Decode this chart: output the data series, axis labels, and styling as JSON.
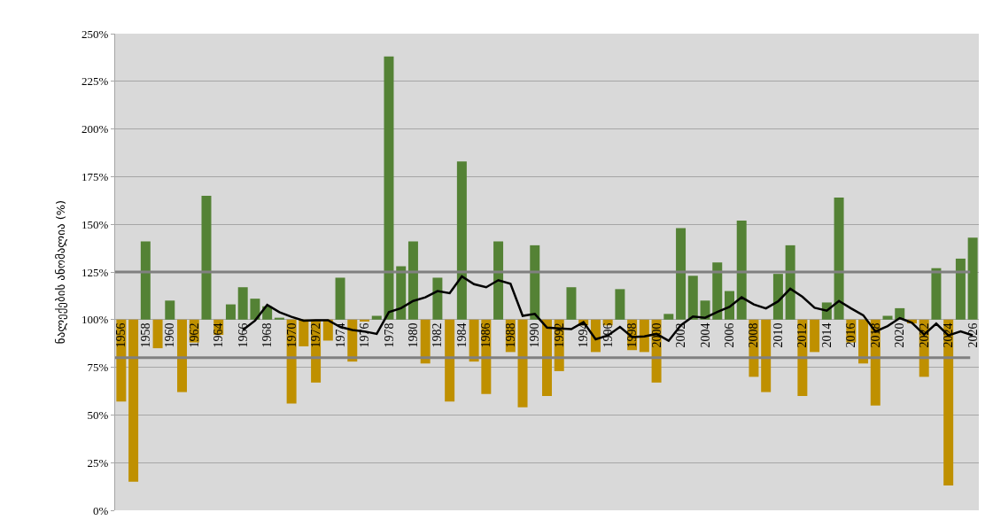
{
  "chart_data": {
    "type": "bar",
    "ylabel": "ნალექების ანომალია (%)",
    "categories": [
      "1956",
      null,
      "1958",
      null,
      "1960",
      null,
      "1962",
      null,
      "1964",
      null,
      "1966",
      null,
      "1968",
      null,
      "1970",
      null,
      "1972",
      null,
      "1974",
      null,
      "1976",
      null,
      "1978",
      null,
      "1980",
      null,
      "1982",
      null,
      "1984",
      null,
      "1986",
      null,
      "1988",
      null,
      "1990",
      null,
      "1992",
      null,
      "1994",
      null,
      "1996",
      null,
      "1998",
      null,
      "2000",
      null,
      "2002",
      null,
      "2004",
      null,
      "2006",
      null,
      "2008",
      null,
      "2010",
      null,
      "2012",
      null,
      "2014",
      null,
      "2016",
      null,
      "2018",
      null,
      "2020",
      null,
      "2022",
      null,
      "2024",
      null,
      "2026"
    ],
    "series": [
      {
        "base": [
          100,
          100,
          100,
          100,
          100,
          100,
          100,
          100,
          100,
          100,
          100,
          100,
          100,
          100,
          100,
          100,
          100,
          100,
          100,
          100,
          100,
          100,
          100,
          100,
          100,
          100,
          100,
          100,
          100,
          100,
          100,
          100,
          100,
          100,
          100,
          100,
          100,
          100,
          100,
          100,
          100,
          100,
          100,
          100,
          100,
          100,
          100,
          100,
          100,
          100,
          100,
          100,
          100,
          100,
          100,
          100,
          100,
          100,
          100,
          100,
          100,
          100,
          100,
          100,
          100,
          100,
          100,
          100,
          100,
          100,
          100
        ],
        "values": [
          -43,
          -85,
          41,
          -15,
          10,
          -38,
          -12,
          65,
          -8,
          8,
          17,
          11,
          7,
          1,
          -44,
          -14,
          -33,
          -11,
          22,
          -22,
          -1,
          2,
          138,
          28,
          41,
          -23,
          22,
          -43,
          83,
          -22,
          -39,
          41,
          -17,
          -46,
          39,
          -40,
          -27,
          17,
          -3,
          -17,
          -3,
          16,
          -16,
          -17,
          -33,
          3,
          48,
          23,
          10,
          30,
          15,
          52,
          -30,
          -38,
          24,
          39,
          -40,
          -17,
          9,
          64,
          -12,
          -23,
          -45,
          2,
          6,
          -2,
          -30,
          27,
          -87,
          32,
          43
        ],
        "colors": [
          "#bf9000",
          "#bf9000",
          "#548235",
          "#bf9000",
          "#548235",
          "#bf9000",
          "#bf9000",
          "#548235",
          "#bf9000",
          "#548235",
          "#548235",
          "#548235",
          "#548235",
          "#548235",
          "#bf9000",
          "#bf9000",
          "#bf9000",
          "#bf9000",
          "#548235",
          "#bf9000",
          "#bf9000",
          "#548235",
          "#548235",
          "#548235",
          "#548235",
          "#bf9000",
          "#548235",
          "#bf9000",
          "#548235",
          "#bf9000",
          "#bf9000",
          "#548235",
          "#bf9000",
          "#bf9000",
          "#548235",
          "#bf9000",
          "#bf9000",
          "#548235",
          "#bf9000",
          "#bf9000",
          "#bf9000",
          "#548235",
          "#bf9000",
          "#bf9000",
          "#bf9000",
          "#548235",
          "#548235",
          "#548235",
          "#548235",
          "#548235",
          "#548235",
          "#548235",
          "#bf9000",
          "#bf9000",
          "#548235",
          "#548235",
          "#bf9000",
          "#bf9000",
          "#548235",
          "#548235",
          "#bf9000",
          "#bf9000",
          "#bf9000",
          "#548235",
          "#548235",
          "#bf9000",
          "#bf9000",
          "#548235",
          "#bf9000",
          "#548235",
          "#548235"
        ]
      },
      {
        "type": "line",
        "color": "#000000",
        "values": [
          null,
          null,
          null,
          null,
          null,
          null,
          null,
          null,
          null,
          null,
          94.6,
          99.5,
          107.7,
          103.9,
          101.5,
          99.5,
          99.7,
          99.7,
          96.2,
          94.6,
          93.8,
          92.5,
          103.9,
          106,
          109.8,
          111.7,
          115,
          113.9,
          122.7,
          118.6,
          117,
          120.7,
          118.8,
          102,
          103,
          95.8,
          95.4,
          95,
          98.7,
          89.7,
          91.7,
          96.2,
          90.9,
          91.2,
          92.5,
          88.9,
          97,
          101.6,
          101,
          104,
          106.7,
          111.7,
          108,
          105.9,
          109.6,
          116.2,
          112,
          106.2,
          104.7,
          109.8,
          105.9,
          102.3,
          93.8,
          96.6,
          100.8,
          98.4,
          92.2,
          97.9,
          91.7,
          93.8,
          91.8
        ]
      }
    ],
    "ylim": [
      0,
      250
    ],
    "yticks": [
      {
        "value": 0,
        "label": "0%"
      },
      {
        "value": 25,
        "label": "25%"
      },
      {
        "value": 50,
        "label": "50%"
      },
      {
        "value": 75,
        "label": "75%"
      },
      {
        "value": 100,
        "label": "100%"
      },
      {
        "value": 125,
        "label": "125%"
      },
      {
        "value": 150,
        "label": "150%"
      },
      {
        "value": 175,
        "label": "175%"
      },
      {
        "value": 200,
        "label": "200%"
      },
      {
        "value": 225,
        "label": "225%"
      },
      {
        "value": 250,
        "label": "250%"
      }
    ],
    "ref_lines": [
      {
        "axis": "y",
        "value": 125,
        "color": "#808080"
      },
      {
        "axis": "y",
        "value": 80,
        "color": "#808080"
      }
    ],
    "grid": "y"
  }
}
